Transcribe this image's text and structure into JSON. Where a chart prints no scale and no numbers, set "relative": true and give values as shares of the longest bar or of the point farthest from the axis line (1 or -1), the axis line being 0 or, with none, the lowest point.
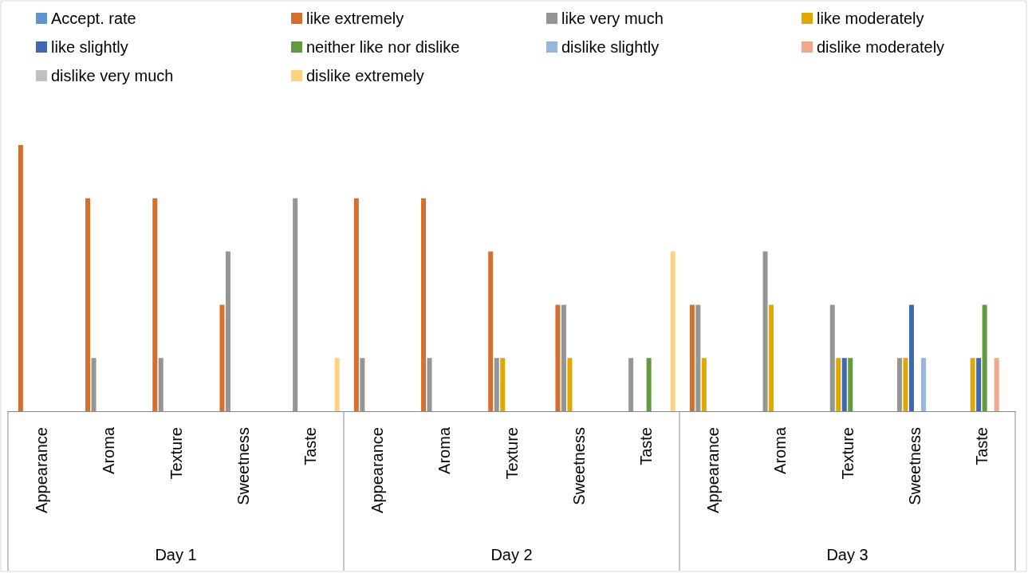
{
  "chart_data": {
    "type": "bar",
    "relative": true,
    "legend": "top",
    "categories": [
      "Appearance",
      "Aroma",
      "Texture",
      "Sweetness",
      "Taste",
      "Appearance",
      "Aroma",
      "Texture",
      "Sweetness",
      "Taste",
      "Appearance",
      "Aroma",
      "Texture",
      "Sweetness",
      "Taste"
    ],
    "annotations": [
      "Day 1",
      "Day 2",
      "Day 3"
    ],
    "series": [
      {
        "name": "Accept. rate",
        "color": "#5b96cc",
        "values": [
          null,
          null,
          null,
          null,
          null,
          null,
          null,
          null,
          null,
          null,
          null,
          null,
          null,
          null,
          null
        ]
      },
      {
        "name": "like extremely",
        "color": "#d46f2c",
        "values": [
          1,
          0.8,
          0.8,
          0.4,
          null,
          0.8,
          0.8,
          0.6,
          0.4,
          null,
          0.4,
          null,
          null,
          null,
          null
        ]
      },
      {
        "name": "like very much",
        "color": "#959595",
        "values": [
          null,
          0.2,
          0.2,
          0.6,
          0.8,
          0.2,
          0.2,
          0.2,
          0.4,
          0.2,
          0.4,
          0.6,
          0.4,
          0.2,
          null
        ]
      },
      {
        "name": "like moderately",
        "color": "#e0a800",
        "values": [
          null,
          null,
          null,
          null,
          null,
          null,
          null,
          0.2,
          0.2,
          null,
          0.2,
          0.4,
          0.2,
          0.2,
          0.2
        ]
      },
      {
        "name": "like slightly",
        "color": "#3e68b0",
        "values": [
          null,
          null,
          null,
          null,
          null,
          null,
          null,
          null,
          null,
          null,
          null,
          null,
          0.2,
          0.4,
          0.2
        ]
      },
      {
        "name": "neither like nor dislike",
        "color": "#629a40",
        "values": [
          null,
          null,
          null,
          null,
          null,
          null,
          null,
          null,
          null,
          0.2,
          null,
          null,
          0.2,
          null,
          0.4
        ]
      },
      {
        "name": "dislike slightly",
        "color": "#94b6e0",
        "values": [
          null,
          null,
          null,
          null,
          null,
          null,
          null,
          null,
          null,
          null,
          null,
          null,
          null,
          0.2,
          null
        ]
      },
      {
        "name": "dislike moderately",
        "color": "#f2a68a",
        "values": [
          null,
          null,
          null,
          null,
          null,
          null,
          null,
          null,
          null,
          null,
          null,
          null,
          null,
          null,
          0.2
        ]
      },
      {
        "name": "dislike very much",
        "color": "#c0c0c0",
        "values": [
          null,
          null,
          null,
          null,
          null,
          null,
          null,
          null,
          null,
          null,
          null,
          null,
          null,
          null,
          null
        ]
      },
      {
        "name": "dislike extremely",
        "color": "#ffd280",
        "values": [
          null,
          null,
          null,
          null,
          0.2,
          null,
          null,
          null,
          null,
          0.6,
          null,
          null,
          null,
          null,
          null
        ]
      }
    ]
  }
}
